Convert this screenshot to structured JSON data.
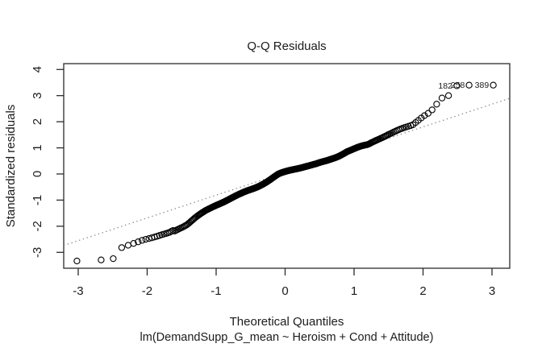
{
  "figure": {
    "title": "Q-Q Residuals",
    "x_axis_label": "Theoretical Quantiles",
    "y_axis_label": "Standardized residuals",
    "model_call": "lm(DemandSupp_G_mean ~ Heroism + Cond + Attitude)"
  },
  "chart_data": {
    "type": "scatter",
    "title": "Q-Q Residuals",
    "xlabel": "Theoretical Quantiles",
    "ylabel": "Standardized residuals",
    "call": "lm(DemandSupp_G_mean ~ Heroism + Cond + Attitude)",
    "grid": false,
    "legend": null,
    "xlim": [
      -3.21,
      3.257
    ],
    "ylim": [
      -3.608,
      4.224
    ],
    "x_ticks": [
      -3,
      -2,
      -1,
      0,
      1,
      2,
      3
    ],
    "y_ticks": [
      -3,
      -2,
      -1,
      0,
      1,
      2,
      3,
      4
    ],
    "n_points": 393,
    "point_style": "open-circle",
    "point_color": "#000000",
    "reference_line": {
      "style": "dotted",
      "color": "#8a8a8a",
      "intercept": 0.06,
      "slope": 0.871
    },
    "labeled_points": [
      {
        "label": "182",
        "x": 2.49,
        "y": 3.38
      },
      {
        "label": "258",
        "x": 2.67,
        "y": 3.4
      },
      {
        "label": "389",
        "x": 3.02,
        "y": 3.4
      }
    ],
    "extreme_low_points": [
      {
        "x": -3.02,
        "y": -3.33
      },
      {
        "x": -2.67,
        "y": -3.29
      },
      {
        "x": -2.49,
        "y": -3.24
      }
    ],
    "qq_curve_anchors": [
      [
        -3.02,
        -3.33
      ],
      [
        -2.67,
        -3.29
      ],
      [
        -2.49,
        -3.24
      ],
      [
        -2.37,
        -2.82
      ],
      [
        -2.2,
        -2.66
      ],
      [
        -2.05,
        -2.52
      ],
      [
        -1.9,
        -2.42
      ],
      [
        -1.78,
        -2.32
      ],
      [
        -1.68,
        -2.24
      ],
      [
        -1.55,
        -2.06
      ],
      [
        -1.42,
        -1.92
      ],
      [
        -1.3,
        -1.7
      ],
      [
        -1.15,
        -1.45
      ],
      [
        -1.0,
        -1.22
      ],
      [
        -0.85,
        -1.02
      ],
      [
        -0.7,
        -0.82
      ],
      [
        -0.55,
        -0.62
      ],
      [
        -0.4,
        -0.44
      ],
      [
        -0.25,
        -0.25
      ],
      [
        -0.1,
        -0.04
      ],
      [
        0.0,
        0.04
      ],
      [
        0.15,
        0.16
      ],
      [
        0.3,
        0.28
      ],
      [
        0.45,
        0.38
      ],
      [
        0.6,
        0.52
      ],
      [
        0.75,
        0.7
      ],
      [
        0.9,
        0.9
      ],
      [
        1.05,
        1.0
      ],
      [
        1.2,
        1.08
      ],
      [
        1.35,
        1.3
      ],
      [
        1.5,
        1.5
      ],
      [
        1.65,
        1.68
      ],
      [
        1.8,
        1.85
      ],
      [
        1.9,
        1.98
      ],
      [
        2.0,
        2.2
      ],
      [
        2.09,
        2.35
      ],
      [
        2.15,
        2.5
      ],
      [
        2.21,
        2.72
      ],
      [
        2.28,
        2.92
      ],
      [
        2.37,
        3.0
      ],
      [
        2.49,
        3.38
      ],
      [
        2.67,
        3.4
      ],
      [
        3.02,
        3.4
      ]
    ]
  }
}
